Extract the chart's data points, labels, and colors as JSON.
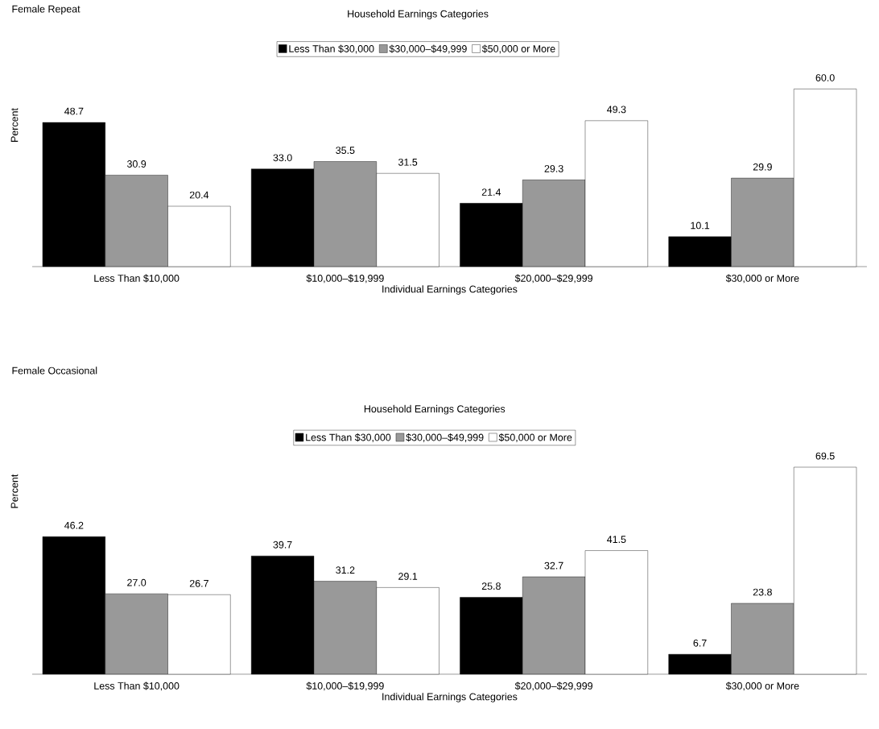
{
  "chart_data": [
    {
      "type": "bar",
      "title": "Female Repeat",
      "legend_title": "Household Earnings Categories",
      "xlabel": "Individual Earnings Categories",
      "ylabel": "Percent",
      "categories": [
        "Less Than $10,000",
        "$10,000–$19,999",
        "$20,000–$29,999",
        "$30,000 or More"
      ],
      "series": [
        {
          "name": "Less Than $30,000",
          "color": "#000000",
          "values": [
            48.7,
            33.0,
            21.4,
            10.1
          ],
          "value_labels": [
            "48.7",
            "33.0",
            "21.4",
            "10.1"
          ]
        },
        {
          "name": "$30,000–$49,999",
          "color": "#999999",
          "values": [
            30.9,
            35.5,
            29.3,
            29.9
          ],
          "value_labels": [
            "30.9",
            "35.5",
            "29.3",
            "29.9"
          ]
        },
        {
          "name": "$50,000 or More",
          "color": "#ffffff",
          "values": [
            20.4,
            31.5,
            49.3,
            60.0
          ],
          "value_labels": [
            "20.4",
            "31.5",
            "49.3",
            "60.0"
          ]
        }
      ],
      "ylim": [
        0,
        60
      ],
      "legend": "top",
      "grid": false,
      "tick_labels": "x"
    },
    {
      "type": "bar",
      "title": "Female Occasional",
      "legend_title": "Household Earnings Categories",
      "xlabel": "Individual Earnings Categories",
      "ylabel": "Percent",
      "categories": [
        "Less Than $10,000",
        "$10,000–$19,999",
        "$20,000–$29,999",
        "$30,000 or More"
      ],
      "series": [
        {
          "name": "Less Than $30,000",
          "color": "#000000",
          "values": [
            46.2,
            39.7,
            25.8,
            6.7
          ],
          "value_labels": [
            "46.2",
            "39.7",
            "25.8",
            "6.7"
          ]
        },
        {
          "name": "$30,000–$49,999",
          "color": "#999999",
          "values": [
            27.0,
            31.2,
            32.7,
            23.8
          ],
          "value_labels": [
            "27.0",
            "31.2",
            "32.7",
            "23.8"
          ]
        },
        {
          "name": "$50,000 or More",
          "color": "#ffffff",
          "values": [
            26.7,
            29.1,
            41.5,
            69.5
          ],
          "value_labels": [
            "26.7",
            "29.1",
            "41.5",
            "69.5"
          ]
        }
      ],
      "ylim": [
        0,
        69.5
      ],
      "legend": "top",
      "grid": false,
      "tick_labels": "x"
    }
  ]
}
